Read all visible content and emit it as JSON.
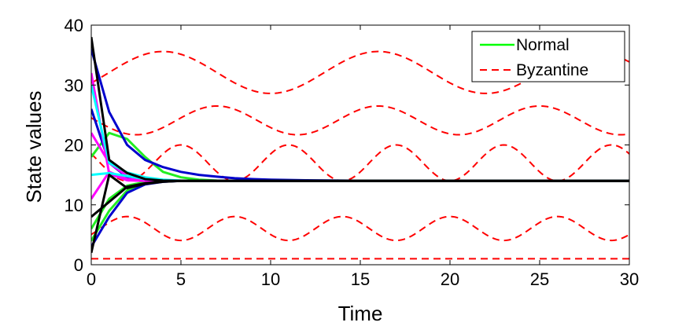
{
  "chart_data": {
    "type": "line",
    "title": "",
    "xlabel": "Time",
    "ylabel": "State values",
    "xlim": [
      0,
      30
    ],
    "ylim": [
      0,
      40
    ],
    "xticks": [
      0,
      5,
      10,
      15,
      20,
      25,
      30
    ],
    "yticks": [
      0,
      10,
      20,
      30,
      40
    ],
    "xtick_labels": [
      "0",
      "5",
      "10",
      "15",
      "20",
      "25",
      "30"
    ],
    "ytick_labels": [
      "0",
      "10",
      "20",
      "30",
      "40"
    ],
    "grid": false,
    "legend": {
      "position": "top-right",
      "entries": [
        {
          "label": "Normal",
          "color": "#00ff00",
          "style": "solid"
        },
        {
          "label": "Byzantine",
          "color": "#ff0000",
          "style": "dashed"
        }
      ]
    },
    "colors": {
      "green": "#22ee22",
      "blue": "#0000cc",
      "magenta": "#ff00ff",
      "cyan": "#00ffff",
      "black": "#000000",
      "red": "#ff0000"
    },
    "normal_series": [
      {
        "name": "green-1",
        "color": "#22ee22",
        "x": [
          0,
          1,
          2,
          3,
          4,
          5,
          6,
          7,
          8,
          9,
          10,
          12,
          15,
          30
        ],
        "y": [
          18,
          22,
          21,
          18,
          15.5,
          14.6,
          14.2,
          14.05,
          14,
          14,
          14,
          14,
          14,
          14
        ]
      },
      {
        "name": "green-2",
        "color": "#22ee22",
        "x": [
          0,
          1,
          2,
          3,
          4,
          5,
          6,
          8,
          10,
          30
        ],
        "y": [
          6,
          11,
          13.2,
          13.8,
          13.95,
          14,
          14,
          14,
          14,
          14
        ]
      },
      {
        "name": "green-3",
        "color": "#22ee22",
        "x": [
          0,
          1,
          2,
          3,
          4,
          5,
          6,
          8,
          10,
          30
        ],
        "y": [
          4,
          9,
          12.4,
          13.5,
          13.9,
          14,
          14,
          14,
          14,
          14
        ]
      },
      {
        "name": "blue-1",
        "color": "#0000cc",
        "x": [
          0,
          1,
          2,
          3,
          4,
          5,
          6,
          7,
          8,
          9,
          10,
          11,
          12,
          14,
          16,
          18,
          20,
          30
        ],
        "y": [
          36,
          25.5,
          20,
          17.5,
          16.3,
          15.5,
          15,
          14.7,
          14.45,
          14.3,
          14.2,
          14.15,
          14.1,
          14.05,
          14,
          14,
          14,
          14
        ]
      },
      {
        "name": "blue-2",
        "color": "#0000cc",
        "x": [
          0,
          1,
          2,
          3,
          4,
          5,
          6,
          8,
          10,
          30
        ],
        "y": [
          26,
          17,
          14.6,
          14.2,
          14.1,
          14,
          14,
          14,
          14,
          14
        ]
      },
      {
        "name": "blue-3",
        "color": "#0000cc",
        "x": [
          0,
          1,
          2,
          3,
          4,
          5,
          6,
          8,
          10,
          30
        ],
        "y": [
          3,
          8,
          12,
          13.4,
          13.85,
          14,
          14,
          14,
          14,
          14
        ]
      },
      {
        "name": "magenta-1",
        "color": "#ff00ff",
        "x": [
          0,
          1,
          2,
          3,
          4,
          5,
          6,
          8,
          10,
          30
        ],
        "y": [
          32,
          15.2,
          14.1,
          14,
          14,
          14,
          14,
          14,
          14,
          14
        ]
      },
      {
        "name": "magenta-2",
        "color": "#ff00ff",
        "x": [
          0,
          1,
          2,
          3,
          4,
          5,
          6,
          8,
          10,
          30
        ],
        "y": [
          22,
          17,
          14.8,
          14.2,
          14.05,
          14,
          14,
          14,
          14,
          14
        ]
      },
      {
        "name": "magenta-3",
        "color": "#ff00ff",
        "x": [
          0,
          1,
          2,
          3,
          4,
          5,
          6,
          8,
          10,
          30
        ],
        "y": [
          11,
          15.5,
          14.3,
          14.1,
          14,
          14,
          14,
          14,
          14,
          14
        ]
      },
      {
        "name": "cyan-1",
        "color": "#00ffff",
        "x": [
          0,
          1,
          2,
          3,
          4,
          5,
          6,
          8,
          10,
          30
        ],
        "y": [
          30,
          17,
          15.4,
          14.6,
          14.2,
          14.05,
          14,
          14,
          14,
          14
        ]
      },
      {
        "name": "cyan-2",
        "color": "#00ffff",
        "x": [
          0,
          1,
          2,
          3,
          4,
          5,
          6,
          8,
          10,
          30
        ],
        "y": [
          15,
          15.3,
          14.8,
          14.3,
          14.1,
          14,
          14,
          14,
          14,
          14
        ]
      },
      {
        "name": "black-1",
        "color": "#000000",
        "x": [
          0,
          1,
          2,
          3,
          4,
          5,
          6,
          8,
          10,
          30
        ],
        "y": [
          38,
          17.5,
          15.3,
          14.3,
          14.05,
          14,
          14,
          14,
          14,
          14
        ]
      },
      {
        "name": "black-2",
        "color": "#000000",
        "x": [
          0,
          1,
          2,
          3,
          4,
          5,
          6,
          8,
          10,
          30
        ],
        "y": [
          8,
          10.5,
          13,
          13.6,
          13.9,
          14,
          14,
          14,
          14,
          14
        ]
      },
      {
        "name": "black-3",
        "color": "#000000",
        "x": [
          0,
          1,
          2,
          3,
          4,
          5,
          6,
          8,
          10,
          30
        ],
        "y": [
          2,
          15,
          12.8,
          13.5,
          13.85,
          14,
          14,
          14,
          14,
          14
        ]
      }
    ],
    "byzantine_series": [
      {
        "name": "byzantine-1",
        "color": "#ff0000",
        "offset": 32.1,
        "amplitude": 3.5,
        "period": 12,
        "peak_x": 4
      },
      {
        "name": "byzantine-2",
        "color": "#ff0000",
        "offset": 24.1,
        "amplitude": 2.4,
        "period": 9,
        "peak_x": 7
      },
      {
        "name": "byzantine-3",
        "color": "#ff0000",
        "offset": 17,
        "amplitude": 3,
        "period": 6,
        "peak_x": 5
      },
      {
        "name": "byzantine-4",
        "color": "#ff0000",
        "offset": 6.05,
        "amplitude": 2,
        "period": 6,
        "peak_x": 2
      },
      {
        "name": "byzantine-5",
        "color": "#ff0000",
        "offset": 1,
        "amplitude": 0,
        "period": 6,
        "peak_x": 0
      }
    ]
  }
}
